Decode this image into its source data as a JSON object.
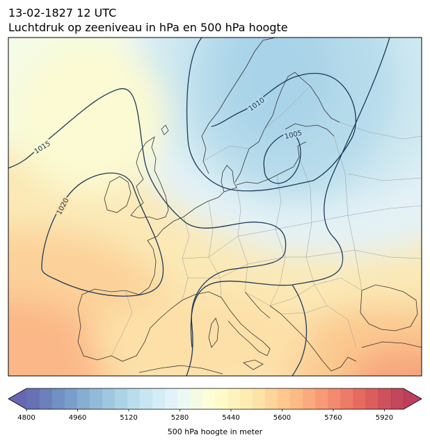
{
  "title": {
    "line1": "13-02-1827 12 UTC",
    "line2": "Luchtdruk op zeeniveau in hPa en 500 hPa hoogte"
  },
  "contours": {
    "labels": [
      "1015",
      "1020",
      "1010",
      "1005"
    ],
    "color": "#1d3a5a"
  },
  "colorbar": {
    "label": "500 hPa hoogte in meter",
    "min": 4800,
    "max": 5980,
    "step": 40,
    "ticks": [
      4800,
      4960,
      5120,
      5280,
      5440,
      5600,
      5760,
      5920
    ],
    "colormap": "RdYlBu_r"
  }
}
